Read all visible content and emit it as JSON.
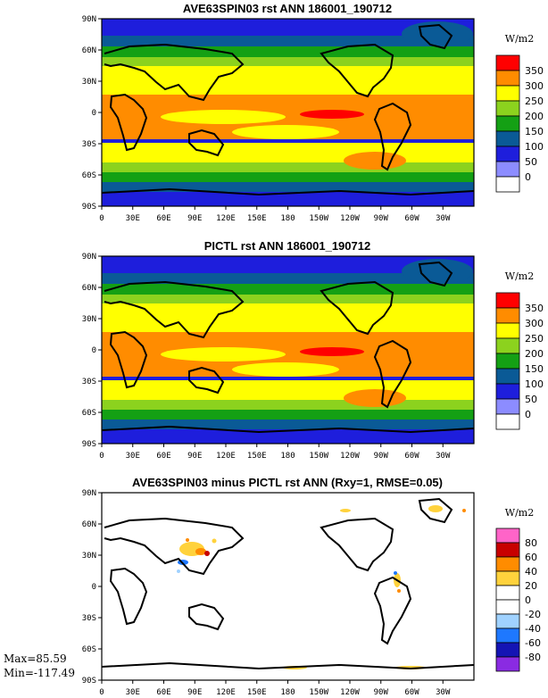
{
  "chart_data": [
    {
      "type": "heatmap",
      "title": "AVE63SPIN03 rst ANN 186001_190712",
      "units": "W/m2",
      "x_ticks": [
        "0",
        "30E",
        "60E",
        "90E",
        "120E",
        "150E",
        "180",
        "150W",
        "120W",
        "90W",
        "60W",
        "30W"
      ],
      "y_ticks": [
        "90N",
        "60N",
        "30N",
        "0",
        "30S",
        "60S",
        "90S"
      ],
      "xlim": [
        0,
        360
      ],
      "ylim": [
        -90,
        90
      ],
      "levels": [
        "350",
        "300",
        "250",
        "200",
        "150",
        "100",
        "50",
        "0"
      ],
      "colors": [
        "#ffffff",
        "#8c8cff",
        "#1e1edc",
        "#0a5a96",
        "#14a014",
        "#8cd21e",
        "#ffff00",
        "#ff8c00",
        "#ff0000"
      ]
    },
    {
      "type": "heatmap",
      "title": "PICTL rst ANN 186001_190712",
      "units": "W/m2",
      "x_ticks": [
        "0",
        "30E",
        "60E",
        "90E",
        "120E",
        "150E",
        "180",
        "150W",
        "120W",
        "90W",
        "60W",
        "30W"
      ],
      "y_ticks": [
        "90N",
        "60N",
        "30N",
        "0",
        "30S",
        "60S",
        "90S"
      ],
      "xlim": [
        0,
        360
      ],
      "ylim": [
        -90,
        90
      ],
      "levels": [
        "350",
        "300",
        "250",
        "200",
        "150",
        "100",
        "50",
        "0"
      ],
      "colors": [
        "#ffffff",
        "#8c8cff",
        "#1e1edc",
        "#0a5a96",
        "#14a014",
        "#8cd21e",
        "#ffff00",
        "#ff8c00",
        "#ff0000"
      ]
    },
    {
      "type": "heatmap",
      "title": "AVE63SPIN03 minus PICTL rst ANN (Rxy=1, RMSE=0.05)",
      "units": "W/m2",
      "x_ticks": [
        "0",
        "30E",
        "60E",
        "90E",
        "120E",
        "150E",
        "180",
        "150W",
        "120W",
        "90W",
        "60W",
        "30W"
      ],
      "y_ticks": [
        "90N",
        "60N",
        "30N",
        "0",
        "30S",
        "60S",
        "90S"
      ],
      "xlim": [
        0,
        360
      ],
      "ylim": [
        -90,
        90
      ],
      "levels": [
        "80",
        "60",
        "40",
        "20",
        "0",
        "-20",
        "-40",
        "-60",
        "-80"
      ],
      "colors": [
        "#8a2be2",
        "#1414b4",
        "#1e78ff",
        "#a0d2ff",
        "#ffffff",
        "#ffffff",
        "#ffd23c",
        "#ff8c00",
        "#c80000",
        "#ff64c8"
      ],
      "max_label": "Max=85.59",
      "min_label": "Min=-117.49"
    }
  ]
}
